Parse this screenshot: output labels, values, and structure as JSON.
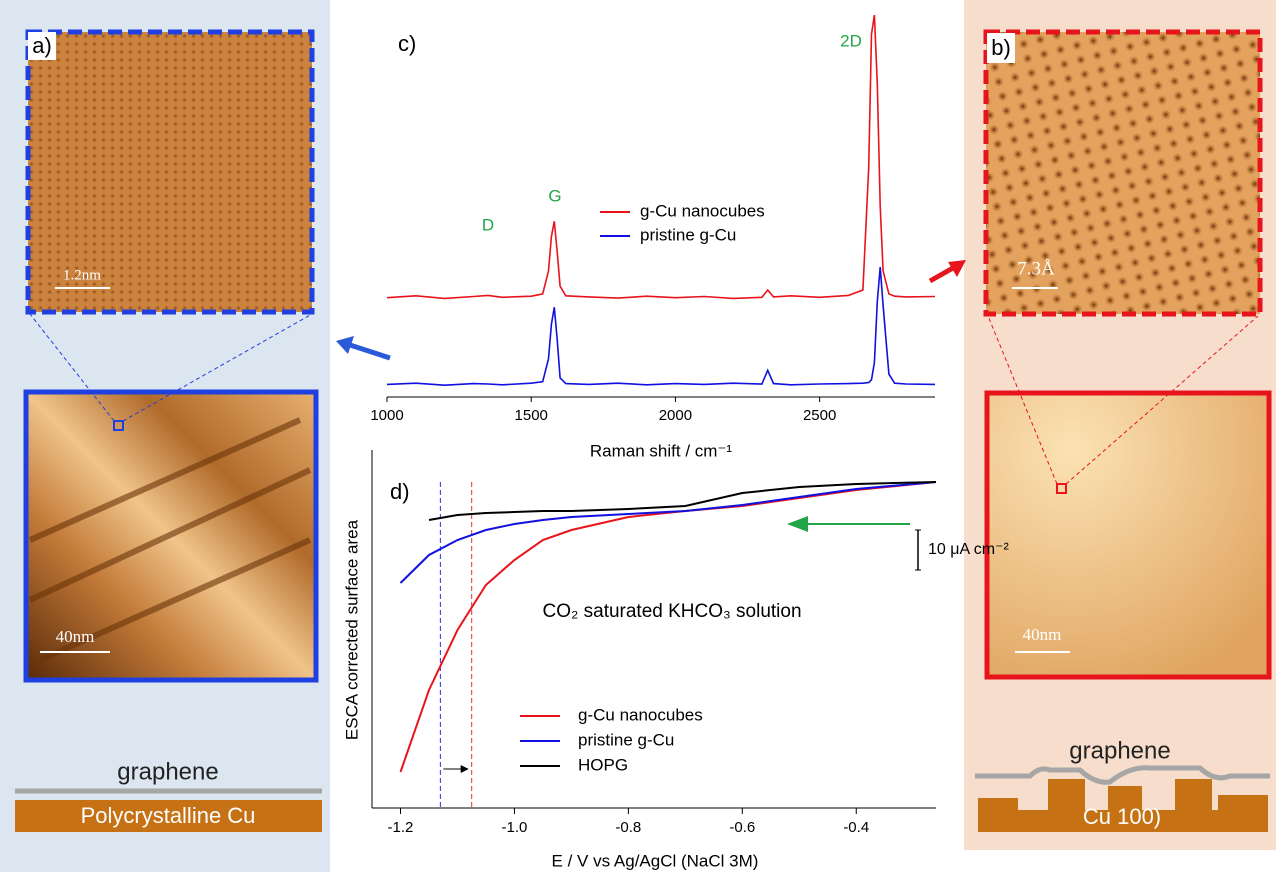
{
  "panels": {
    "a": "a)",
    "b": "b)",
    "c": "c)",
    "d": "d)"
  },
  "images": {
    "a_scale": "1.2nm",
    "a_zoom_scale": "40nm",
    "b_scale": "7.3Å",
    "b_zoom_scale": "40nm"
  },
  "schematics": {
    "left": {
      "layer": "graphene",
      "substrate": "Polycrystalline Cu"
    },
    "right": {
      "layer": "graphene",
      "substrate": "Cu 100)"
    }
  },
  "chart_data": [
    {
      "type": "line",
      "xlabel": "Raman shift / cm⁻¹",
      "x": [
        1000,
        1100,
        1200,
        1300,
        1350,
        1400,
        1500,
        1540,
        1560,
        1570,
        1580,
        1590,
        1600,
        1620,
        1700,
        1800,
        1900,
        2000,
        2100,
        2200,
        2300,
        2320,
        2340,
        2400,
        2500,
        2600,
        2650,
        2670,
        2680,
        2690,
        2700,
        2710,
        2720,
        2740,
        2760,
        2800,
        2900
      ],
      "series": [
        {
          "name": "g-Cu nanocubes",
          "color": "#e8141c",
          "values": [
            26,
            26.5,
            25.8,
            26.3,
            26.6,
            26.1,
            26.4,
            27,
            33,
            42,
            46,
            38,
            29,
            26.5,
            26.2,
            25.9,
            26.4,
            26,
            26.3,
            25.8,
            26.1,
            28,
            26.2,
            26.5,
            26.1,
            26.6,
            28,
            60,
            95,
            100,
            82,
            50,
            33,
            27,
            26.4,
            26.2,
            26.3
          ]
        },
        {
          "name": "pristine g-Cu",
          "color": "#1010e0",
          "values": [
            3.3,
            3.6,
            3.1,
            3.5,
            3.4,
            3.2,
            3.6,
            4,
            10,
            19,
            23.5,
            15,
            5,
            3.5,
            3.3,
            3.6,
            3.2,
            3.5,
            3.3,
            3.6,
            3.4,
            7,
            3.5,
            3.2,
            3.4,
            3.5,
            3.6,
            3.8,
            4.5,
            9,
            25,
            34,
            24,
            6,
            3.6,
            3.4,
            3.3
          ]
        }
      ],
      "xlim": [
        1000,
        2900
      ],
      "ylim": [
        0,
        100
      ],
      "xticks": [
        1000,
        1500,
        2000,
        2500
      ],
      "annotations": [
        "D",
        "G",
        "2D"
      ],
      "annotation_color": "#22a548"
    },
    {
      "type": "line",
      "xlabel": "E / V vs Ag/AgCl (NaCl 3M)",
      "ylabel": "ESCA corrected  surface area",
      "annotation": "CO₂ saturated KHCO₃ solution",
      "x": [
        -1.2,
        -1.15,
        -1.1,
        -1.05,
        -1.0,
        -0.95,
        -0.9,
        -0.8,
        -0.7,
        -0.6,
        -0.5,
        -0.4,
        -0.26
      ],
      "series": [
        {
          "name": "g-Cu nanocubes",
          "color": "#e8141c",
          "values": [
            9,
            29.5,
            44.5,
            55.75,
            62,
            67,
            69.5,
            72.75,
            74.25,
            75.5,
            77.5,
            79.5,
            81.5
          ]
        },
        {
          "name": "pristine g-Cu",
          "color": "#1010e0",
          "values": [
            56.25,
            63.25,
            67,
            69.5,
            71,
            72,
            72.75,
            73.5,
            74.25,
            75.75,
            77.75,
            79.75,
            81.5
          ]
        },
        {
          "name": "HOPG",
          "color": "#000000",
          "values": [
            null,
            72,
            73.25,
            73.75,
            74,
            74.25,
            74.25,
            74.75,
            75.5,
            78.75,
            80.25,
            81,
            81.5
          ]
        }
      ],
      "xlim": [
        -1.25,
        -0.26
      ],
      "ylim": [
        0,
        89.5
      ],
      "xticks": [
        -1.2,
        {
          "value": -1,
          "label": "-1.0"
        },
        -0.8,
        -0.6,
        -0.4
      ],
      "markers": [
        {
          "value": -1.13,
          "color": "#2233dd"
        },
        {
          "value": -1.075,
          "color": "#e03030"
        }
      ],
      "scale_bar": {
        "value": 10,
        "label": "10 μA cm⁻²"
      }
    }
  ]
}
